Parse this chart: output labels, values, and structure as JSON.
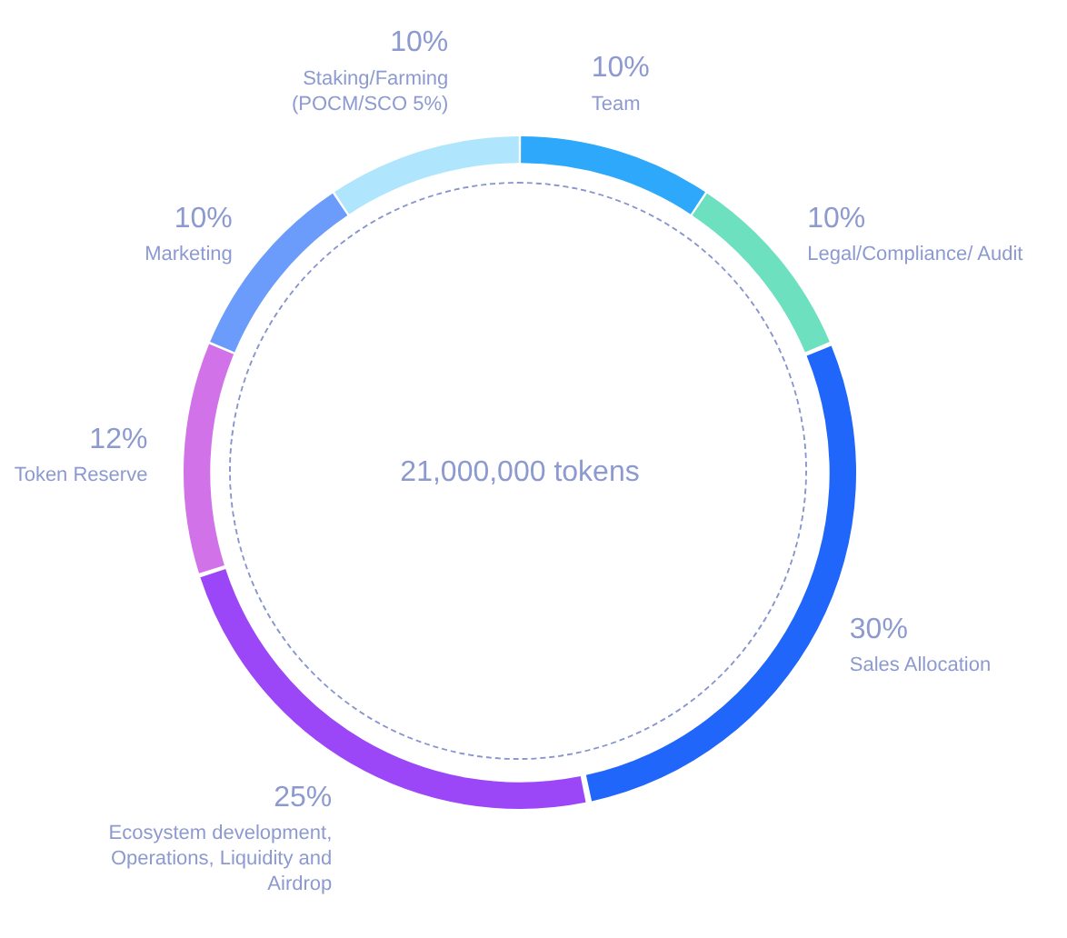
{
  "chart_data": {
    "type": "donut",
    "categories": [
      "Team",
      "Legal/Compliance/ Audit",
      "Sales Allocation",
      "Ecosystem development, Operations, Liquidity and Airdrop",
      "Token Reserve",
      "Marketing",
      "Staking/Farming (POCM/SCO 5%)"
    ],
    "values": [
      10,
      10,
      30,
      25,
      12,
      10,
      10
    ],
    "value_labels": [
      "10%",
      "10%",
      "30%",
      "25%",
      "12%",
      "10%",
      "10%"
    ],
    "colors": [
      "#2ea8fb",
      "#6de0c0",
      "#2166fb",
      "#9b47f8",
      "#d272e8",
      "#6b9bfb",
      "#b0e6fd"
    ],
    "annotations": [
      "21,000,000 tokens"
    ],
    "legend": false
  }
}
